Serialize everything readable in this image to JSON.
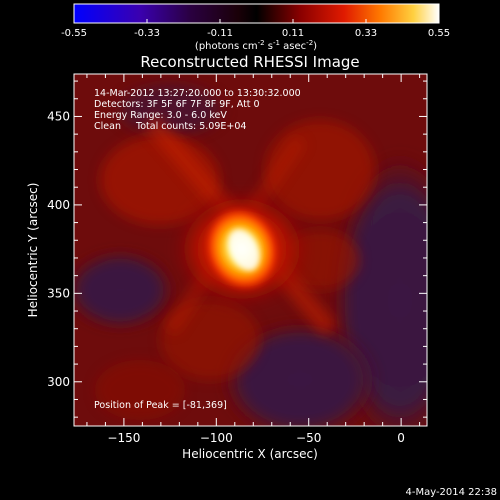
{
  "colorbar": {
    "tick_labels": [
      "-0.55",
      "-0.33",
      "-0.11",
      "0.11",
      "0.33",
      "0.55"
    ],
    "units": {
      "prefix": "(photons cm",
      "exp1": "-2",
      "mid1": " s",
      "exp2": "-1",
      "mid2": " asec",
      "exp3": "-2",
      "suffix": ")"
    },
    "colors": {
      "low": "#0000ff",
      "mid_low": "#1a0030",
      "zero": "#000000",
      "mid": "#b30000",
      "high_mid": "#ff6a00",
      "high": "#ffff66",
      "top": "#ffffff"
    }
  },
  "title": "Reconstructed RHESSI Image",
  "info_lines": [
    "14-Mar-2012 13:27:20.000 to 13:30:32.000",
    "Detectors: 3F 5F 6F 7F 8F 9F, Att 0",
    "Energy Range: 3.0 - 6.0 keV",
    "Clean     Total counts: 5.09E+04"
  ],
  "peak_label": "Position of Peak = [-81,369]",
  "axes": {
    "xlabel": "Heliocentric X (arcsec)",
    "ylabel": "Heliocentric Y (arcsec)",
    "xlim": [
      -177,
      14
    ],
    "ylim": [
      275,
      474
    ],
    "xticks": [
      -150,
      -100,
      -50,
      0
    ],
    "xtick_labels": [
      "−150",
      "−100",
      "−50",
      "0"
    ],
    "yticks": [
      300,
      350,
      400,
      450
    ],
    "ytick_labels": [
      "300",
      "350",
      "400",
      "450"
    ]
  },
  "image": {
    "peak_position": [
      -81,
      369
    ],
    "colors": {
      "background": "#6a0a0a",
      "purple": "#3a1640",
      "bright": "#ffff88"
    }
  },
  "footer_date": "4-May-2014 22:38"
}
